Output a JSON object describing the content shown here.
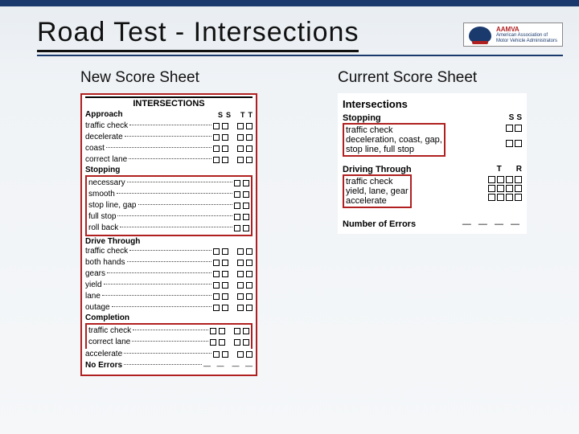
{
  "title": "Road Test - Intersections",
  "logo": {
    "acronym": "AAMVA",
    "line1": "American Association of",
    "line2": "Motor Vehicle Administrators"
  },
  "columns": {
    "left": "New Score Sheet",
    "right": "Current Score Sheet"
  },
  "new_sheet": {
    "header": "INTERSECTIONS",
    "col_heads": [
      "S",
      "S",
      "T",
      "T"
    ],
    "approach": {
      "label": "Approach",
      "items": [
        "traffic check",
        "decelerate",
        "coast",
        "correct lane"
      ]
    },
    "stopping": {
      "label": "Stopping",
      "items": [
        "necessary",
        "smooth",
        "stop line, gap",
        "full stop",
        "roll back"
      ]
    },
    "drive_through": {
      "label": "Drive Through",
      "items": [
        "traffic check",
        "both hands",
        "gears",
        "yield",
        "lane",
        "outage"
      ]
    },
    "completion": {
      "label": "Completion",
      "items": [
        "traffic check",
        "correct lane",
        "accelerate"
      ]
    },
    "no_errors": "No Errors"
  },
  "current_sheet": {
    "title": "Intersections",
    "stopping": {
      "label": "Stopping",
      "heads": [
        "S",
        "S"
      ],
      "hl_lines": [
        "traffic check",
        "deceleration, coast, gap,",
        "stop line, full stop"
      ]
    },
    "driving_through": {
      "label": "Driving Through",
      "heads": [
        "T",
        "R"
      ],
      "hl_lines": [
        "traffic check",
        "yield, lane, gear",
        "accelerate"
      ]
    },
    "num_errors": "Number of Errors",
    "dashes": "— — — —"
  },
  "colors": {
    "accent_red": "#b02020",
    "accent_navy": "#1a3a6e",
    "bg_top": "#e8edf2"
  }
}
